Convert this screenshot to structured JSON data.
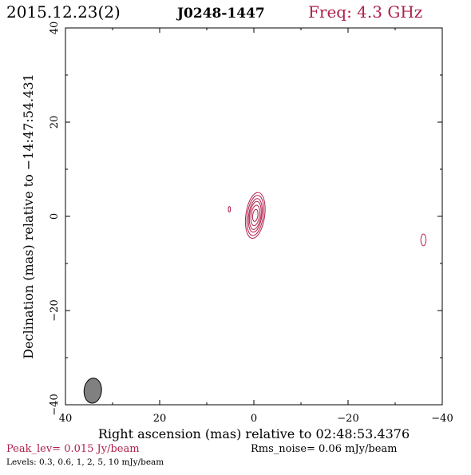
{
  "header": {
    "date": "2015.12.23(2)",
    "source": "J0248-1447",
    "freq": "Freq: 4.3 GHz"
  },
  "footer": {
    "peak": "Peak_lev=  0.015 Jy/beam",
    "rms": "Rms_noise= 0.06 mJy/beam",
    "levels": "Levels: 0.3, 0.6,    1,    2,    5,   10 mJy/beam"
  },
  "colors": {
    "contour": "#b0204a",
    "peak_text": "#b0204a",
    "freq_text": "#b0204a",
    "beam_fill": "#808080",
    "axes": "#000000"
  },
  "chart_data": {
    "type": "contour",
    "xlabel": "Right ascension (mas) relative to 02:48:53.4376",
    "ylabel": "Declination (mas) relative to −14:47:54.431",
    "xlim": [
      40,
      -40
    ],
    "ylim": [
      -40,
      40
    ],
    "xticks": [
      40,
      20,
      0,
      -20,
      -40
    ],
    "xtick_labels": [
      "40",
      "20",
      "0",
      "−20",
      "−40"
    ],
    "yticks": [
      -40,
      -20,
      0,
      20,
      40
    ],
    "ytick_labels": [
      "−40",
      "−20",
      "0",
      "20",
      "40"
    ],
    "contour_levels_mJy": [
      0.3,
      0.6,
      1,
      2,
      5,
      10
    ],
    "components": [
      {
        "center_x": -0.3,
        "center_y": 0.2,
        "rings": [
          {
            "a": 2.0,
            "b": 4.9
          },
          {
            "a": 1.7,
            "b": 4.3
          },
          {
            "a": 1.4,
            "b": 3.6
          },
          {
            "a": 1.2,
            "b": 3.0
          },
          {
            "a": 0.9,
            "b": 2.2
          },
          {
            "a": 0.55,
            "b": 1.3
          }
        ],
        "rotation_deg": 8
      },
      {
        "center_x": 5.2,
        "center_y": 1.5,
        "rings": [
          {
            "a": 0.22,
            "b": 0.6
          }
        ],
        "rotation_deg": 0
      },
      {
        "center_x": -36.0,
        "center_y": -5.0,
        "rings": [
          {
            "a": 0.55,
            "b": 1.25
          }
        ],
        "rotation_deg": 0
      }
    ],
    "beam": {
      "center_x": 34.2,
      "center_y": -37.0,
      "major": 4.2,
      "minor": 1.85,
      "rotation_deg": 5
    }
  }
}
